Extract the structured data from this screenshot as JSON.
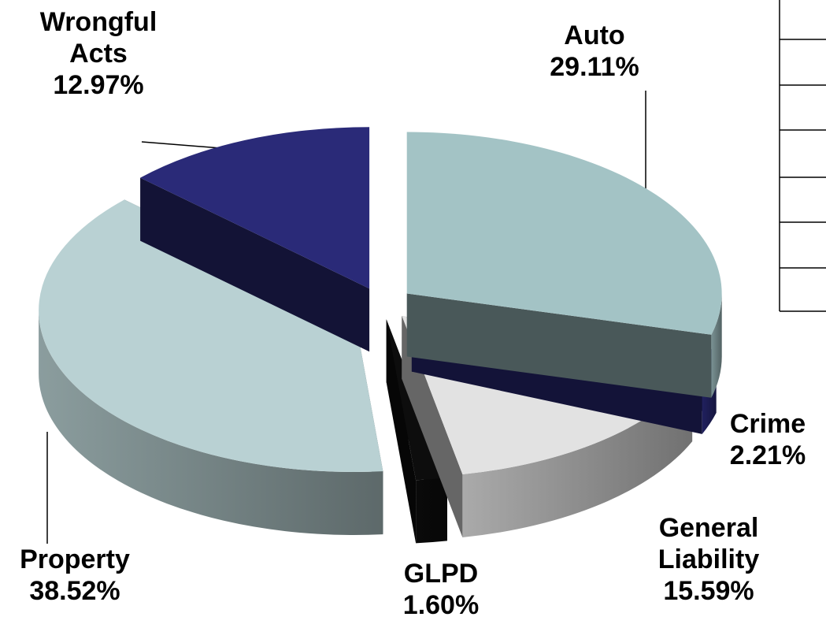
{
  "chart_data": {
    "type": "pie3d",
    "categories": [
      "Auto",
      "Crime",
      "General Liability",
      "GLPD",
      "Property",
      "Wrongful Acts"
    ],
    "values": [
      29.11,
      2.21,
      15.59,
      1.6,
      38.52,
      12.97
    ],
    "value_labels": [
      "29.11%",
      "2.21%",
      "15.59%",
      "1.60%",
      "38.52%",
      "12.97%"
    ],
    "colors": [
      "#a3c3c5",
      "#2b2b7d",
      "#e2e2e2",
      "#0d0d0d",
      "#b9d1d3",
      "#2a2a78"
    ]
  }
}
